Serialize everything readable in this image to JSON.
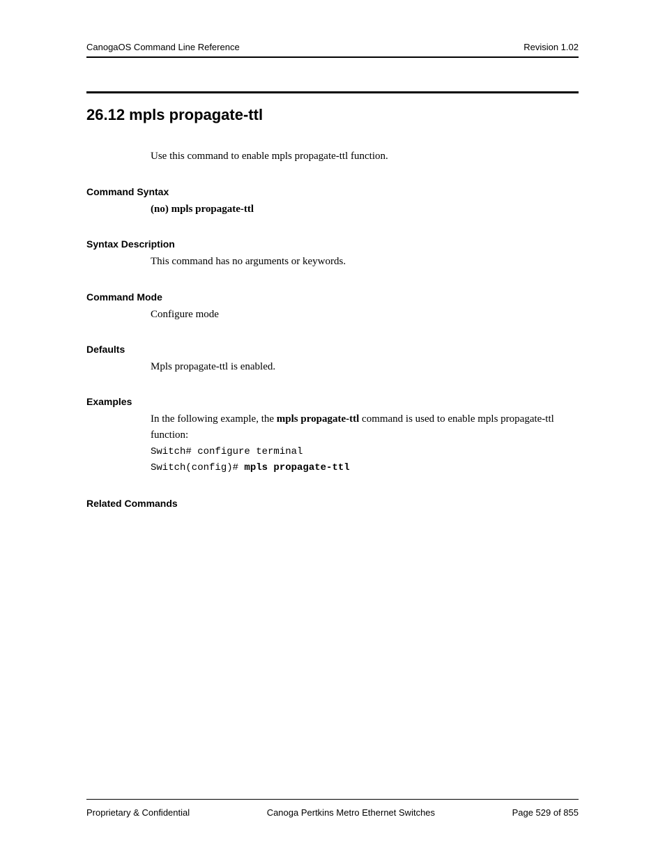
{
  "header": {
    "left": "CanogaOS Command Line Reference",
    "right": "Revision 1.02"
  },
  "title": "26.12  mpls propagate-ttl",
  "intro": "Use this command to enable mpls propagate-ttl function.",
  "sections": {
    "syntax": {
      "heading": "Command Syntax",
      "body": "(no) mpls propagate-ttl"
    },
    "syntax_desc": {
      "heading": "Syntax Description",
      "body": "This command has no arguments or keywords."
    },
    "mode": {
      "heading": "Command Mode",
      "body": "Configure mode"
    },
    "defaults": {
      "heading": "Defaults",
      "body": "Mpls propagate-ttl is enabled."
    },
    "examples": {
      "heading": "Examples",
      "lead_pre": "In the following example, the ",
      "lead_cmd": "mpls propagate-ttl",
      "lead_post": " command is used to enable mpls propagate-ttl function:",
      "code_line1": "Switch# configure terminal",
      "code_line2_prompt": "Switch(config)# ",
      "code_line2_cmd": "mpls propagate-ttl"
    },
    "related": {
      "heading": "Related Commands"
    }
  },
  "footer": {
    "left": "Proprietary & Confidential",
    "center": "Canoga Pertkins Metro Ethernet Switches",
    "right": "Page 529 of 855"
  }
}
